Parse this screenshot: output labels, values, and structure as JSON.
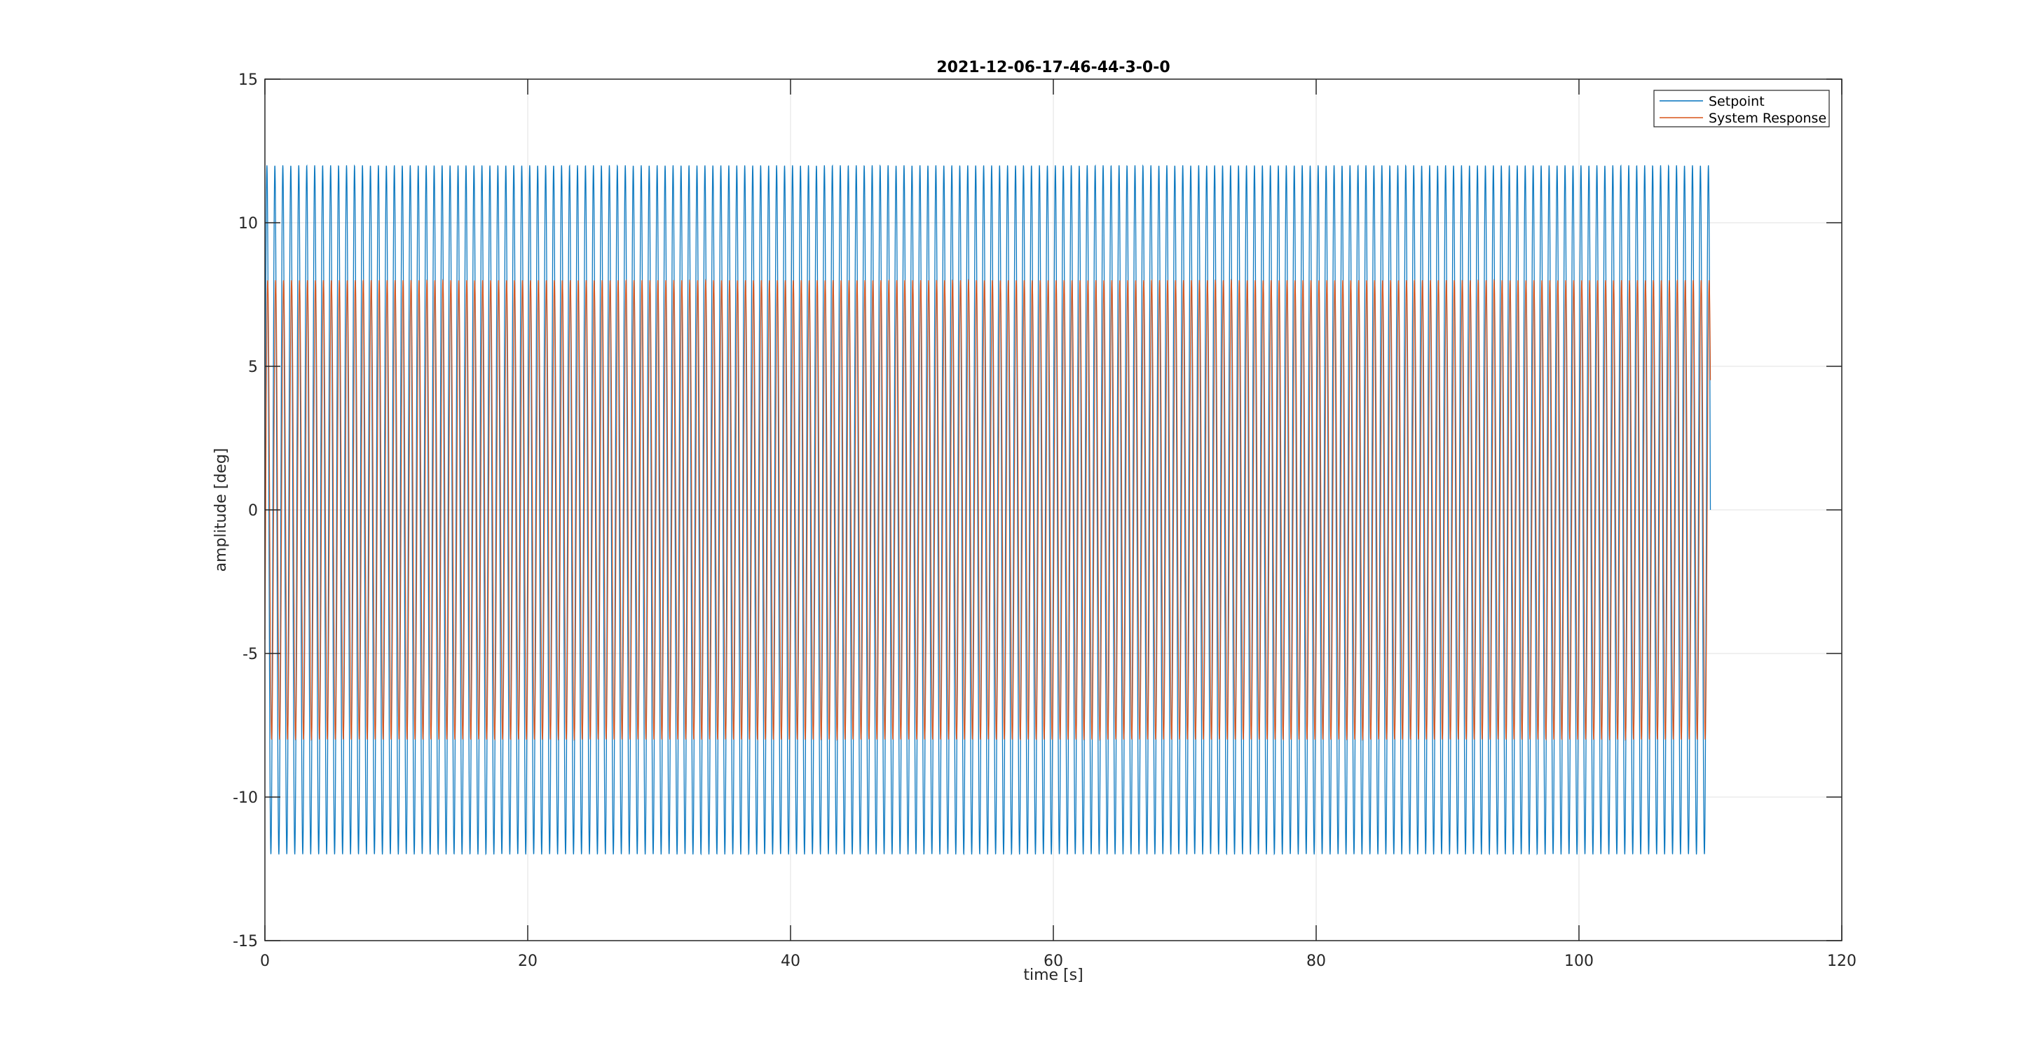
{
  "chart_data": {
    "type": "line",
    "title": "2021-12-06-17-46-44-3-0-0",
    "xlabel": "time [s]",
    "ylabel": "amplitude [deg]",
    "xlim": [
      0,
      120
    ],
    "ylim": [
      -15,
      15
    ],
    "x_ticks": [
      0,
      20,
      40,
      60,
      80,
      100,
      120
    ],
    "y_ticks": [
      -15,
      -10,
      -5,
      0,
      5,
      10,
      15
    ],
    "x_tick_labels": [
      "0",
      "20",
      "40",
      "60",
      "80",
      "100",
      "120"
    ],
    "y_tick_labels": [
      "-15",
      "-10",
      "-5",
      "0",
      "5",
      "10",
      "15"
    ],
    "grid": true,
    "legend_position": "top-right",
    "series": [
      {
        "name": "Setpoint",
        "color": "#0072BD",
        "shape": "sine",
        "amplitude": 12,
        "frequency_hz": 1.65,
        "t_start": 0,
        "t_end": 110
      },
      {
        "name": "System Response",
        "color": "#D95319",
        "shape": "sine",
        "amplitude": 8,
        "frequency_hz": 1.65,
        "t_start": 0,
        "t_end": 110
      }
    ]
  }
}
